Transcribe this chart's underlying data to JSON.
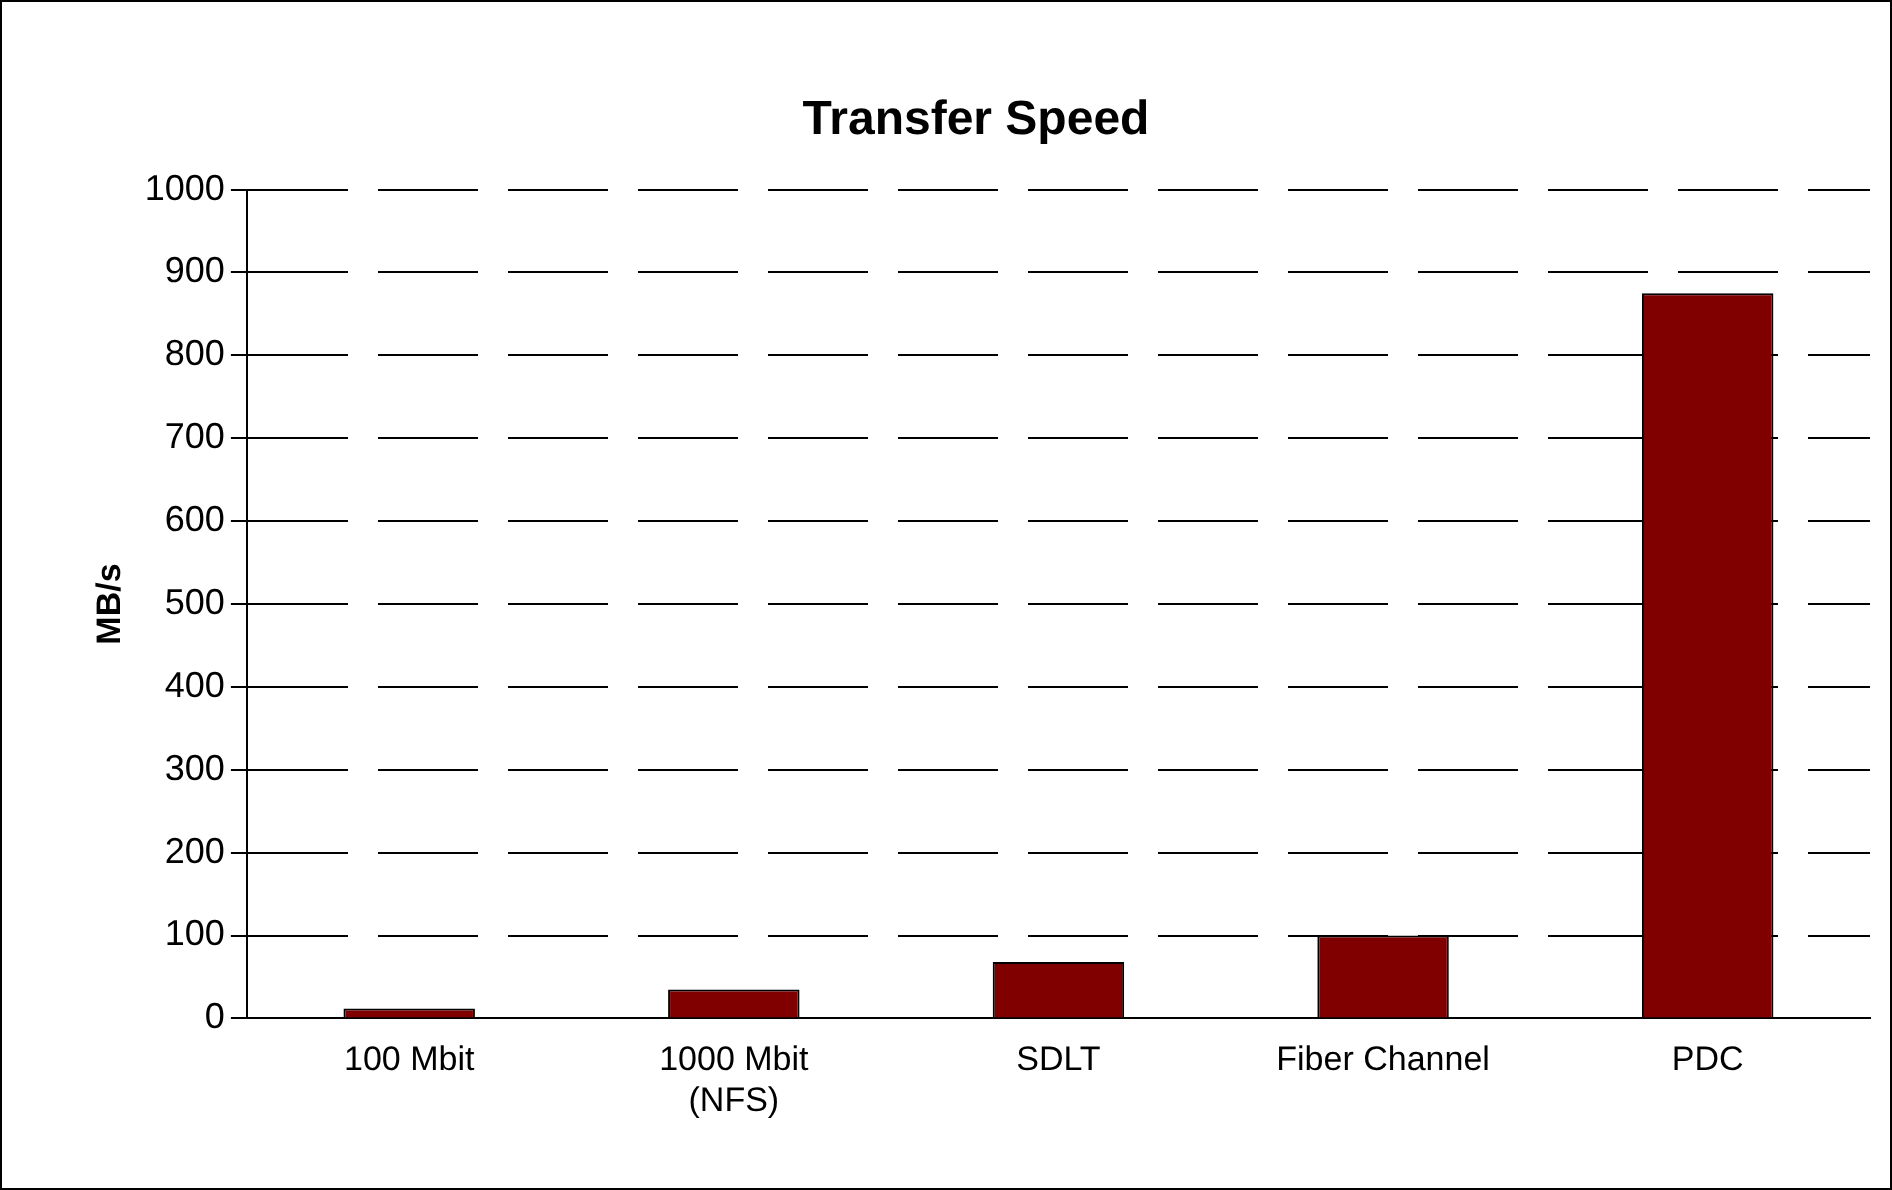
{
  "chart_data": {
    "type": "bar",
    "title": "Transfer Speed",
    "ylabel": "MB/s",
    "categories": [
      "100 Mbit",
      "1000 Mbit\n(NFS)",
      "SDLT",
      "Fiber Channel",
      "PDC"
    ],
    "values": [
      12,
      35,
      68,
      100,
      875
    ],
    "color": "#800000",
    "ylim": [
      0,
      1000
    ],
    "yticks": [
      0,
      100,
      200,
      300,
      400,
      500,
      600,
      700,
      800,
      900,
      1000
    ],
    "grid": "y",
    "legend": false
  }
}
